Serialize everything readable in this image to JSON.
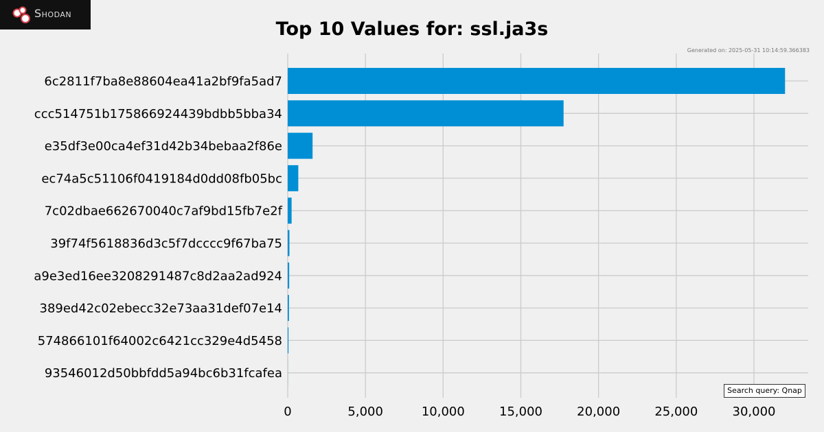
{
  "logo": {
    "brand_text": "Shodan",
    "icon": "shodan-logo-icon"
  },
  "generated_text": "Generated on: 2025-05-31 10:14:59.366383",
  "search_query_text": "Search query: Qnap",
  "chart_data": {
    "type": "bar",
    "orientation": "horizontal",
    "title": "Top 10 Values for: ssl.ja3s",
    "xlabel": "",
    "ylabel": "",
    "categories": [
      "6c2811f7ba8e88604ea41a2bf9fa5ad7",
      "ccc514751b175866924439bdbb5bba34",
      "e35df3e00ca4ef31d42b34bebaa2f86e",
      "ec74a5c51106f0419184d0dd08fb05bc",
      "7c02dbae662670040c7af9bd15fb7e2f",
      "39f74f5618836d3c5f7dcccc9f67ba75",
      "a9e3ed16ee3208291487c8d2aa2ad924",
      "389ed42c02ebecc32e73aa31def07e14",
      "574866101f64002c6421cc329e4d5458",
      "93546012d50bbfdd5a94bc6b31fcafea"
    ],
    "values": [
      32000,
      17750,
      1600,
      680,
      250,
      110,
      95,
      80,
      50,
      5
    ],
    "xlim": [
      0,
      33500
    ],
    "xticks": [
      0,
      5000,
      10000,
      15000,
      20000,
      25000,
      30000
    ],
    "xtick_labels": [
      "0",
      "5,000",
      "10,000",
      "15,000",
      "20,000",
      "25,000",
      "30,000"
    ],
    "grid": true,
    "bar_color": "#008fd5",
    "grid_color": "#cbcbcb",
    "background": "#f0f0f0"
  }
}
